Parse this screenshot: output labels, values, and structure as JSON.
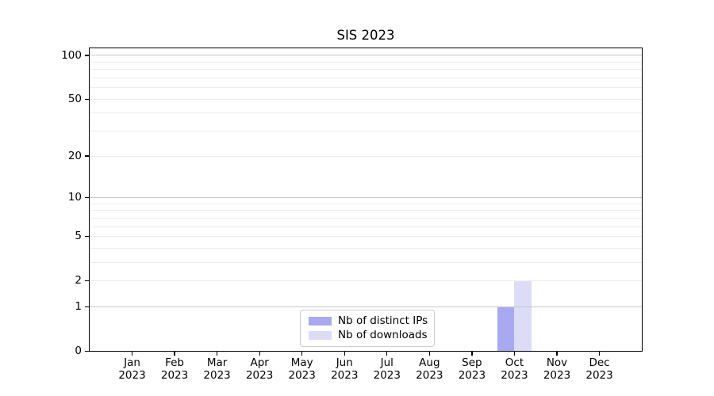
{
  "chart_data": {
    "type": "bar",
    "title": "SIS 2023",
    "categories": [
      "Jan 2023",
      "Feb 2023",
      "Mar 2023",
      "Apr 2023",
      "May 2023",
      "Jun 2023",
      "Jul 2023",
      "Aug 2023",
      "Sep 2023",
      "Oct 2023",
      "Nov 2023",
      "Dec 2023"
    ],
    "series": [
      {
        "name": "Nb of distinct IPs",
        "color": "#a9a9f1",
        "values": [
          0,
          0,
          0,
          0,
          0,
          0,
          0,
          0,
          0,
          1,
          0,
          0
        ]
      },
      {
        "name": "Nb of downloads",
        "color": "#dcdcf7",
        "values": [
          0,
          0,
          0,
          0,
          0,
          0,
          0,
          0,
          0,
          2,
          0,
          0
        ]
      }
    ],
    "xlabel": "",
    "ylabel": "",
    "yscale": "log10(1+y)",
    "ylim": [
      0,
      113
    ],
    "y_tick_values": [
      0,
      1,
      2,
      5,
      10,
      20,
      50,
      100
    ],
    "y_tick_labels": [
      "0",
      "1",
      "2",
      "5",
      "10",
      "20",
      "50",
      "100"
    ],
    "y_major_grid_values": [
      1,
      10,
      100
    ],
    "y_minor_grid_values": [
      2,
      3,
      4,
      5,
      6,
      7,
      8,
      9,
      20,
      30,
      40,
      50,
      60,
      70,
      80,
      90
    ],
    "grid": "horizontal",
    "legend_position": "lower center"
  },
  "legend": {
    "entries": [
      {
        "label": "Nb of distinct IPs",
        "color": "#a9a9f1"
      },
      {
        "label": "Nb of downloads",
        "color": "#dcdcf7"
      }
    ]
  },
  "colors": {
    "background": "#ffffff",
    "axis": "#000000",
    "text": "#000000",
    "major_grid": "#c7c7c7",
    "minor_grid": "#ededed",
    "legend_border": "#cccccc"
  }
}
